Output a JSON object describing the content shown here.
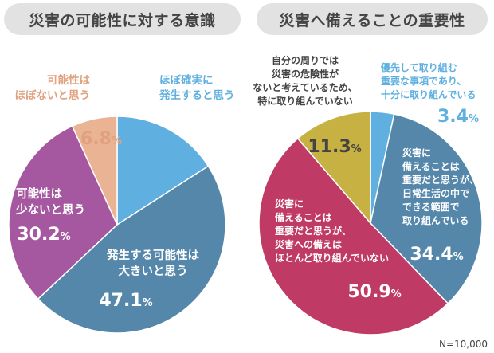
{
  "note": "N=10,000",
  "chart_data": [
    {
      "type": "pie",
      "title": "災害の可能性に対する意識",
      "colors": [
        "#5fb0e0",
        "#5587aa",
        "#a558a0",
        "#e9b394"
      ],
      "slices": [
        {
          "label": [
            "ほぼ確実に",
            "発生すると思う"
          ],
          "value": 15.9,
          "label_color": "#5fb0e0"
        },
        {
          "label": [
            "発生する可能性は",
            "大きいと思う"
          ],
          "value": 47.1,
          "label_color": "#ffffff"
        },
        {
          "label": [
            "可能性は",
            "少ないと思う"
          ],
          "value": 30.2,
          "label_color": "#ffffff"
        },
        {
          "label": [
            "可能性は",
            "ほぼないと思う"
          ],
          "value": 6.8,
          "label_color": "#e0a27e"
        }
      ]
    },
    {
      "type": "pie",
      "title": "災害へ備えることの重要性",
      "colors": [
        "#5fb0e0",
        "#5587aa",
        "#bf3a65",
        "#c8b143"
      ],
      "slices": [
        {
          "label": [
            "優先して取り組む",
            "重要な事項であり、",
            "十分に取り組んでいる"
          ],
          "value": 3.4,
          "label_color": "#5fb0e0"
        },
        {
          "label": [
            "災害に",
            "備えることは",
            "重要だと思うが、",
            "日常生活の中で",
            "できる範囲で",
            "取り組んでいる"
          ],
          "value": 34.4,
          "label_color": "#ffffff"
        },
        {
          "label": [
            "災害に",
            "備えることは",
            "重要だと思うが、",
            "災害への備えは",
            "ほとんど取り組んでいない"
          ],
          "value": 50.9,
          "label_color": "#ffffff"
        },
        {
          "label": [
            "自分の周りでは",
            "災害の危険性が",
            "ないと考えているため、",
            "特に取り組んでいない"
          ],
          "value": 11.3,
          "label_color": "#444444"
        }
      ]
    }
  ]
}
